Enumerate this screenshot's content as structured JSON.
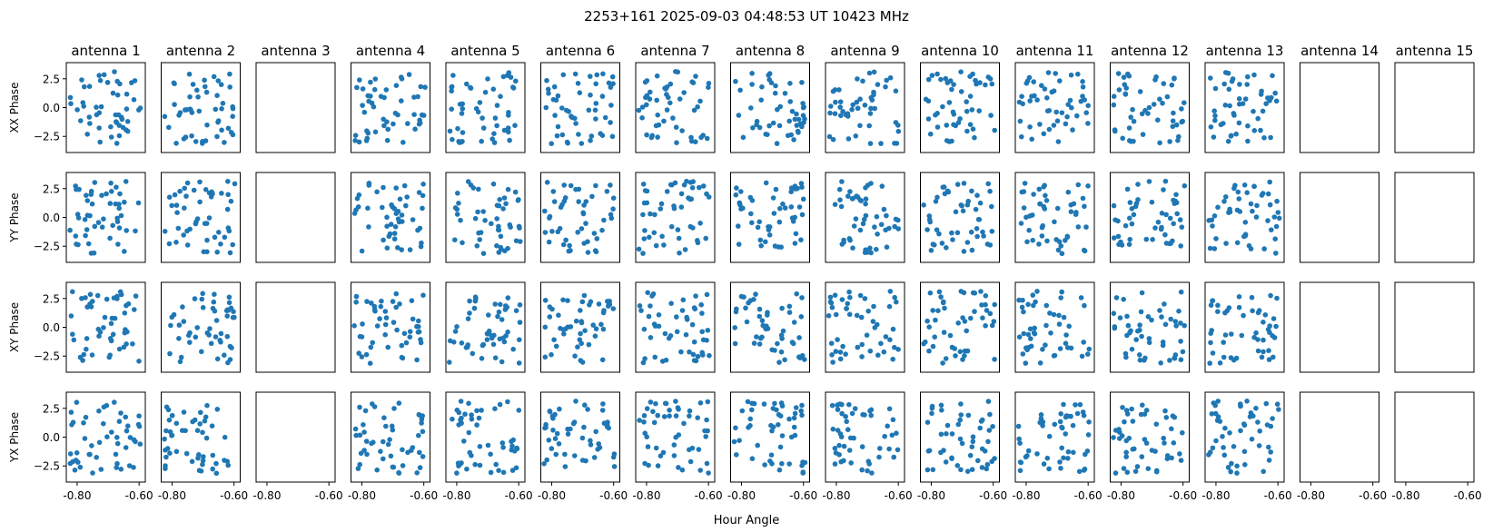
{
  "chart_data": {
    "type": "scatter",
    "title": "2253+161  2025-09-03 04:48:53 UT  10423 MHz",
    "xlabel": "Hour Angle",
    "columns": [
      "antenna 1",
      "antenna 2",
      "antenna 3",
      "antenna 4",
      "antenna 5",
      "antenna 6",
      "antenna 7",
      "antenna 8",
      "antenna 9",
      "antenna 10",
      "antenna 11",
      "antenna 12",
      "antenna 13",
      "antenna 14",
      "antenna 15"
    ],
    "rows": [
      "XX Phase",
      "YY Phase",
      "XY Phase",
      "YX Phase"
    ],
    "xlim": [
      -0.835,
      -0.58
    ],
    "ylim": [
      -3.9,
      3.9
    ],
    "xticks": [
      {
        "value": -0.8,
        "label": "-0.80"
      },
      {
        "value": -0.6,
        "label": "-0.60"
      }
    ],
    "yticks": [
      {
        "value": 2.5,
        "label": "2.5"
      },
      {
        "value": 0.0,
        "label": "0.0"
      },
      {
        "value": -2.5,
        "label": "−2.5"
      }
    ],
    "empty_columns": [
      "antenna 3",
      "antenna 14",
      "antenna 15"
    ],
    "points_per_panel": 50,
    "x_range_of_points": [
      -0.825,
      -0.595
    ],
    "y_range_of_points": [
      -3.14,
      3.14
    ],
    "marker_color": "#1f77b4",
    "grid": false
  }
}
